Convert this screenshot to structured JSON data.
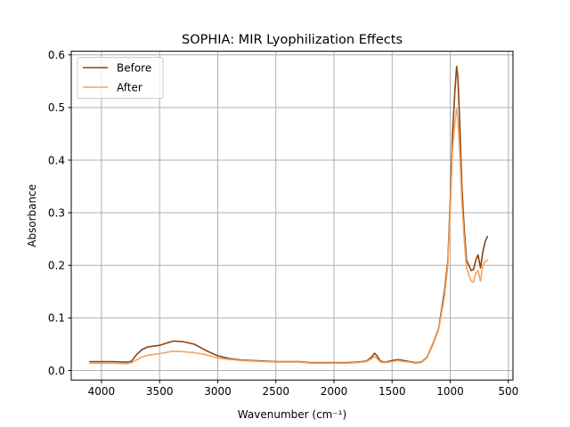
{
  "chart_data": {
    "type": "line",
    "title": "SOPHIA: MIR Lyophilization Effects",
    "xlabel": "Wavenumber (cm⁻¹)",
    "ylabel": "Absorbance",
    "xlim": [
      4260,
      460
    ],
    "ylim": [
      -0.018,
      0.607
    ],
    "x_reversed": true,
    "xticks": [
      4000,
      3500,
      3000,
      2500,
      2000,
      1500,
      1000,
      500
    ],
    "xtick_labels": [
      "4000",
      "3500",
      "3000",
      "2500",
      "2000",
      "1500",
      "1000",
      "500"
    ],
    "yticks": [
      0.0,
      0.1,
      0.2,
      0.3,
      0.4,
      0.5,
      0.6
    ],
    "ytick_labels": [
      "0.0",
      "0.1",
      "0.2",
      "0.3",
      "0.4",
      "0.5",
      "0.6"
    ],
    "grid": true,
    "legend": "top-left",
    "series": [
      {
        "name": "Before",
        "color": "#8B4513",
        "points": [
          [
            4100,
            0.017
          ],
          [
            3900,
            0.017
          ],
          [
            3780,
            0.016
          ],
          [
            3740,
            0.018
          ],
          [
            3700,
            0.03
          ],
          [
            3650,
            0.04
          ],
          [
            3600,
            0.045
          ],
          [
            3500,
            0.048
          ],
          [
            3430,
            0.053
          ],
          [
            3380,
            0.056
          ],
          [
            3300,
            0.055
          ],
          [
            3200,
            0.05
          ],
          [
            3100,
            0.038
          ],
          [
            3000,
            0.028
          ],
          [
            2900,
            0.023
          ],
          [
            2800,
            0.02
          ],
          [
            2700,
            0.019
          ],
          [
            2600,
            0.018
          ],
          [
            2500,
            0.017
          ],
          [
            2400,
            0.017
          ],
          [
            2350,
            0.017
          ],
          [
            2300,
            0.017
          ],
          [
            2200,
            0.015
          ],
          [
            2100,
            0.015
          ],
          [
            2000,
            0.015
          ],
          [
            1900,
            0.015
          ],
          [
            1800,
            0.016
          ],
          [
            1720,
            0.018
          ],
          [
            1680,
            0.025
          ],
          [
            1650,
            0.033
          ],
          [
            1630,
            0.028
          ],
          [
            1600,
            0.018
          ],
          [
            1560,
            0.016
          ],
          [
            1500,
            0.019
          ],
          [
            1450,
            0.021
          ],
          [
            1400,
            0.019
          ],
          [
            1350,
            0.017
          ],
          [
            1300,
            0.015
          ],
          [
            1250,
            0.016
          ],
          [
            1200,
            0.025
          ],
          [
            1150,
            0.05
          ],
          [
            1100,
            0.08
          ],
          [
            1050,
            0.15
          ],
          [
            1020,
            0.21
          ],
          [
            1000,
            0.32
          ],
          [
            980,
            0.45
          ],
          [
            960,
            0.53
          ],
          [
            945,
            0.578
          ],
          [
            935,
            0.56
          ],
          [
            920,
            0.48
          ],
          [
            900,
            0.35
          ],
          [
            880,
            0.27
          ],
          [
            860,
            0.21
          ],
          [
            840,
            0.2
          ],
          [
            820,
            0.19
          ],
          [
            800,
            0.192
          ],
          [
            780,
            0.21
          ],
          [
            760,
            0.22
          ],
          [
            740,
            0.195
          ],
          [
            720,
            0.225
          ],
          [
            700,
            0.245
          ],
          [
            680,
            0.255
          ]
        ]
      },
      {
        "name": "After",
        "color": "#F4A460",
        "points": [
          [
            4100,
            0.014
          ],
          [
            3900,
            0.014
          ],
          [
            3780,
            0.013
          ],
          [
            3740,
            0.015
          ],
          [
            3700,
            0.02
          ],
          [
            3650,
            0.026
          ],
          [
            3600,
            0.029
          ],
          [
            3500,
            0.032
          ],
          [
            3430,
            0.035
          ],
          [
            3380,
            0.037
          ],
          [
            3300,
            0.036
          ],
          [
            3200,
            0.034
          ],
          [
            3100,
            0.03
          ],
          [
            3000,
            0.024
          ],
          [
            2900,
            0.021
          ],
          [
            2800,
            0.019
          ],
          [
            2700,
            0.018
          ],
          [
            2600,
            0.017
          ],
          [
            2500,
            0.016
          ],
          [
            2400,
            0.016
          ],
          [
            2300,
            0.016
          ],
          [
            2200,
            0.014
          ],
          [
            2100,
            0.014
          ],
          [
            2000,
            0.014
          ],
          [
            1900,
            0.014
          ],
          [
            1800,
            0.015
          ],
          [
            1720,
            0.017
          ],
          [
            1680,
            0.022
          ],
          [
            1650,
            0.027
          ],
          [
            1630,
            0.023
          ],
          [
            1600,
            0.016
          ],
          [
            1560,
            0.015
          ],
          [
            1500,
            0.017
          ],
          [
            1450,
            0.019
          ],
          [
            1400,
            0.017
          ],
          [
            1350,
            0.016
          ],
          [
            1300,
            0.014
          ],
          [
            1250,
            0.015
          ],
          [
            1200,
            0.024
          ],
          [
            1150,
            0.048
          ],
          [
            1100,
            0.078
          ],
          [
            1050,
            0.14
          ],
          [
            1020,
            0.2
          ],
          [
            1000,
            0.3
          ],
          [
            980,
            0.42
          ],
          [
            960,
            0.47
          ],
          [
            945,
            0.498
          ],
          [
            935,
            0.48
          ],
          [
            920,
            0.42
          ],
          [
            900,
            0.32
          ],
          [
            880,
            0.25
          ],
          [
            860,
            0.195
          ],
          [
            840,
            0.182
          ],
          [
            820,
            0.17
          ],
          [
            800,
            0.168
          ],
          [
            780,
            0.185
          ],
          [
            760,
            0.19
          ],
          [
            740,
            0.17
          ],
          [
            720,
            0.2
          ],
          [
            700,
            0.207
          ],
          [
            680,
            0.21
          ]
        ]
      }
    ]
  }
}
